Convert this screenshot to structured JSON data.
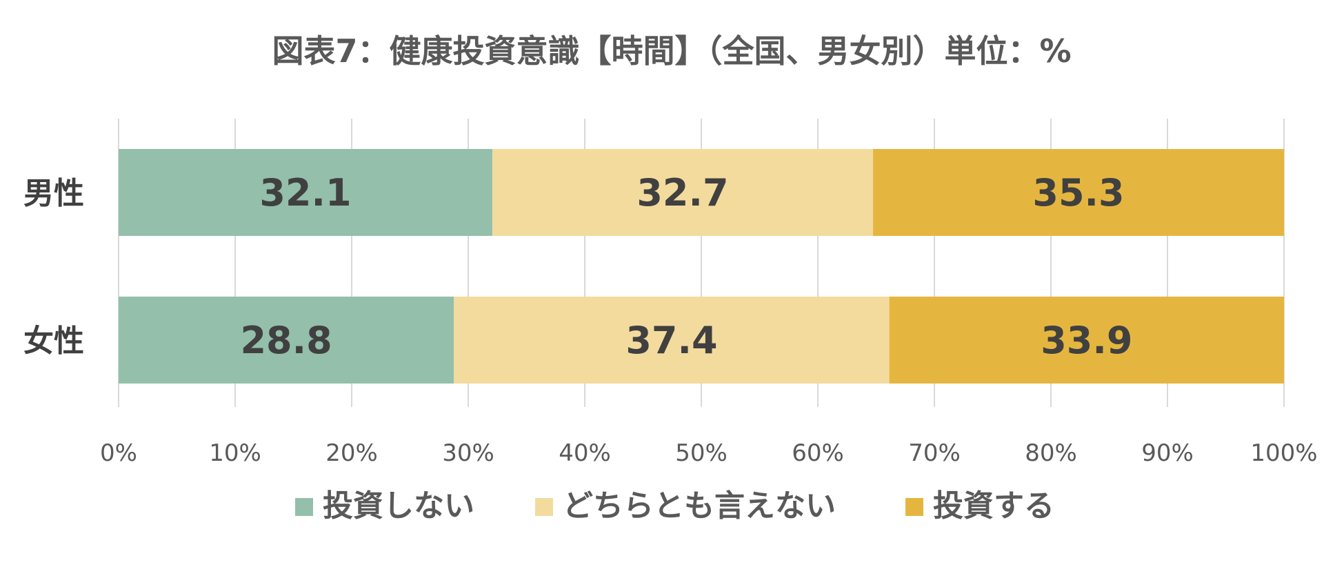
{
  "chart_data": {
    "type": "bar",
    "orientation": "horizontal",
    "stacked": "percent",
    "title": "図表7：健康投資意識【時間】（全国、男女別）単位：%",
    "categories": [
      "男性",
      "女性"
    ],
    "series": [
      {
        "name": "投資しない",
        "values": [
          32.1,
          28.8
        ],
        "color": "#93bfab"
      },
      {
        "name": "どちらとも言えない",
        "values": [
          32.7,
          37.4
        ],
        "color": "#f3db9e"
      },
      {
        "name": "投資する",
        "values": [
          35.3,
          33.9
        ],
        "color": "#e5b63f"
      }
    ],
    "data_labels": [
      [
        "32.1",
        "28.8"
      ],
      [
        "32.7",
        "37.4"
      ],
      [
        "35.3",
        "33.9"
      ]
    ],
    "xlim": [
      0,
      100
    ],
    "xticks": [
      0,
      10,
      20,
      30,
      40,
      50,
      60,
      70,
      80,
      90,
      100
    ],
    "xtick_labels": [
      "0%",
      "10%",
      "20%",
      "30%",
      "40%",
      "50%",
      "60%",
      "70%",
      "80%",
      "90%",
      "100%"
    ],
    "grid": "vertical",
    "gridline_color": "#d9d9d9",
    "legend_position": "bottom"
  }
}
